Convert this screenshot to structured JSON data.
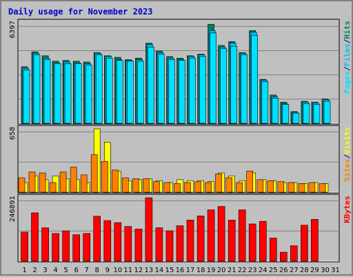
{
  "chart_data": {
    "type": "bar",
    "title": "Daily usage for November 2023",
    "colors": {
      "title": "#0000cc",
      "background": "#c0c0c0",
      "panel": "#c0c0c0",
      "grid": "#808080",
      "hits": "#00805c",
      "files": "#00c0ff",
      "pages": "#00e0ff",
      "visits": "#ffff00",
      "sites": "#ff8000",
      "kbytes": "#ff0000",
      "weekend_day": "#00805c"
    },
    "categories": [
      "1",
      "2",
      "3",
      "4",
      "5",
      "6",
      "7",
      "8",
      "9",
      "10",
      "11",
      "12",
      "13",
      "14",
      "15",
      "16",
      "17",
      "18",
      "19",
      "20",
      "21",
      "22",
      "23",
      "24",
      "25",
      "26",
      "27",
      "28",
      "29",
      "30",
      "31"
    ],
    "weekend_days": [
      "4",
      "5",
      "11",
      "12",
      "18",
      "19",
      "25",
      "26"
    ],
    "panels": [
      {
        "name": "hits_files_pages",
        "ymax_label": "6397",
        "ymax": 6397,
        "legend": [
          {
            "text": "Pages",
            "color": "#00e0ff"
          },
          {
            "text": "/",
            "color": "#000080"
          },
          {
            "text": "Files",
            "color": "#00c0ff"
          },
          {
            "text": "/",
            "color": "#000080"
          },
          {
            "text": "Hits",
            "color": "#00805c"
          }
        ],
        "series": [
          {
            "name": "Hits",
            "values": [
              3600,
              4550,
              4300,
              3950,
              4000,
              3950,
              3900,
              4500,
              4300,
              4200,
              4050,
              4150,
              5100,
              4600,
              4250,
              4150,
              4300,
              4400,
              6300,
              4950,
              5200,
              4500,
              5900,
              2800,
              1800,
              1350,
              750,
              1400,
              1350,
              1550,
              0
            ]
          },
          {
            "name": "Files",
            "values": [
              3500,
              4450,
              4150,
              3850,
              3900,
              3850,
              3800,
              4450,
              4250,
              4050,
              4000,
              4050,
              5000,
              4500,
              4150,
              4050,
              4250,
              4350,
              5900,
              4850,
              5100,
              4450,
              5800,
              2750,
              1700,
              1250,
              700,
              1350,
              1300,
              1500,
              0
            ]
          },
          {
            "name": "Pages",
            "values": [
              3400,
              4350,
              4050,
              3800,
              3800,
              3800,
              3700,
              4350,
              4150,
              4000,
              3950,
              3950,
              4850,
              4400,
              4050,
              4000,
              4150,
              4250,
              5750,
              4750,
              4900,
              4350,
              5600,
              2650,
              1600,
              1200,
              650,
              1250,
              1200,
              1400,
              0
            ]
          }
        ]
      },
      {
        "name": "visits_sites",
        "ymax_label": "658",
        "ymax": 658,
        "legend": [
          {
            "text": "Sites",
            "color": "#ff8000"
          },
          {
            "text": "/",
            "color": "#000080"
          },
          {
            "text": "Visits",
            "color": "#ffff00"
          }
        ],
        "series": [
          {
            "name": "Visits",
            "values": [
              100,
              170,
              130,
              170,
              140,
              130,
              100,
              658,
              520,
              220,
              120,
              130,
              140,
              120,
              100,
              130,
              120,
              120,
              110,
              200,
              170,
              120,
              200,
              130,
              120,
              100,
              100,
              90,
              100,
              90,
              0
            ]
          },
          {
            "name": "Sites",
            "values": [
              150,
              210,
              200,
              100,
              210,
              260,
              180,
              390,
              320,
              230,
              150,
              140,
              140,
              110,
              100,
              90,
              100,
              110,
              100,
              190,
              150,
              100,
              220,
              130,
              120,
              110,
              100,
              90,
              100,
              90,
              0
            ]
          }
        ]
      },
      {
        "name": "kbytes",
        "ymax_label": "246891",
        "ymax": 246891,
        "legend": [
          {
            "text": "KBytes",
            "color": "#ff0000"
          }
        ],
        "series": [
          {
            "name": "KBytes",
            "values": [
              113000,
              188000,
              130000,
              108000,
              118000,
              103000,
              108000,
              175000,
              158000,
              150000,
              135000,
              125000,
              246891,
              130000,
              118000,
              138000,
              160000,
              176000,
              200000,
              213000,
              160000,
              200000,
              145000,
              155000,
              90000,
              35000,
              60000,
              140000,
              163000,
              0,
              0
            ]
          }
        ]
      }
    ]
  }
}
